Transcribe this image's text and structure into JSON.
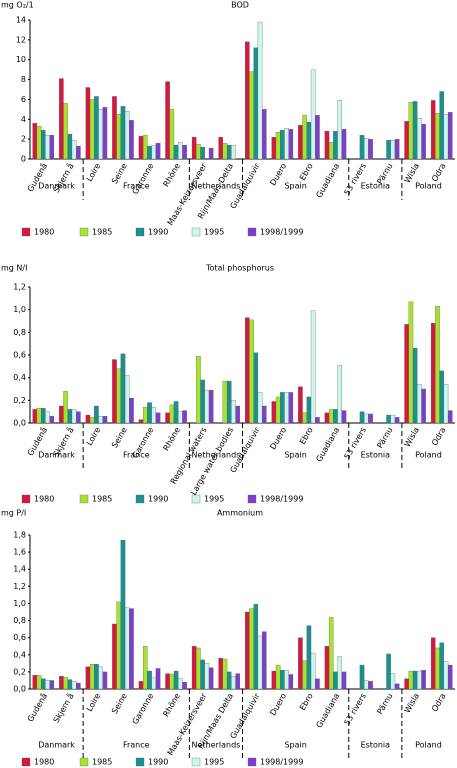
{
  "chart_data": [
    {
      "type": "bar",
      "title": "BOD",
      "ylabel": "mg O₂/1",
      "groups": [
        {
          "name": "Danmark",
          "categories": [
            "Gudenå",
            "Skjern å"
          ]
        },
        {
          "name": "France",
          "categories": [
            "Loire",
            "Seine",
            "Garonne",
            "Rhône"
          ]
        },
        {
          "name": "Netherlands",
          "categories": [
            "Maas-Keizersveer",
            "Rijn/Maas Delta"
          ]
        },
        {
          "name": "Spain",
          "categories": [
            "Guadalquivir",
            "Duero",
            "Ebro",
            "Guadiana"
          ]
        },
        {
          "name": "Estonia",
          "categories": [
            "53 rivers",
            "Pärnu"
          ]
        },
        {
          "name": "Poland",
          "categories": [
            "Wisla",
            "Odra"
          ]
        }
      ],
      "series": [
        {
          "name": "1980",
          "color": "#d6173f",
          "values": [
            3.6,
            8.1,
            7.2,
            6.3,
            2.3,
            7.8,
            2.2,
            2.2,
            11.8,
            2.2,
            3.4,
            2.8,
            null,
            null,
            3.8,
            5.9
          ]
        },
        {
          "name": "1985",
          "color": "#a6e22e",
          "values": [
            3.3,
            5.6,
            6.0,
            4.5,
            2.4,
            5.0,
            1.5,
            1.6,
            8.8,
            2.7,
            4.4,
            1.7,
            null,
            null,
            5.7,
            4.6
          ]
        },
        {
          "name": "1990",
          "color": "#1a9090",
          "values": [
            2.9,
            2.5,
            6.3,
            5.3,
            1.3,
            1.4,
            1.2,
            1.4,
            11.2,
            2.9,
            3.7,
            2.8,
            2.4,
            1.9,
            5.8,
            6.8
          ]
        },
        {
          "name": "1995",
          "color": "#ccf5ec",
          "values": [
            2.4,
            1.9,
            5.0,
            4.8,
            1.4,
            1.7,
            null,
            1.4,
            13.8,
            3.1,
            9.0,
            5.9,
            2.1,
            1.9,
            4.1,
            4.5
          ]
        },
        {
          "name": "1998/1999",
          "color": "#7d3fc8",
          "values": [
            2.4,
            1.3,
            5.2,
            3.9,
            1.6,
            1.4,
            1.1,
            null,
            5.0,
            3.0,
            4.4,
            3.0,
            2.0,
            2.0,
            3.5,
            4.7
          ]
        }
      ],
      "ylim": [
        0,
        14
      ],
      "yticks": [
        0,
        2,
        4,
        6,
        8,
        10,
        12,
        14
      ]
    },
    {
      "type": "bar",
      "title": "Total phosphorus",
      "ylabel": "mg N/I",
      "groups": [
        {
          "name": "Danmark",
          "categories": [
            "Gudenå",
            "Skjern å"
          ]
        },
        {
          "name": "France",
          "categories": [
            "Loire",
            "Seine",
            "Garonne",
            "Rhône"
          ]
        },
        {
          "name": "Netherlands",
          "categories": [
            "Regional waters",
            "Large water bodies"
          ]
        },
        {
          "name": "Spain",
          "categories": [
            "Guadalquivir",
            "Duero",
            "Ebro",
            "Guadiana"
          ]
        },
        {
          "name": "Estonia",
          "categories": [
            "53 rivers",
            "Pärnu"
          ]
        },
        {
          "name": "Poland",
          "categories": [
            "Wisla",
            "Odra"
          ]
        }
      ],
      "series": [
        {
          "name": "1980",
          "color": "#d6173f",
          "values": [
            0.12,
            0.15,
            0.07,
            0.56,
            0.03,
            0.09,
            null,
            null,
            0.93,
            0.19,
            0.32,
            0.09,
            null,
            null,
            0.87,
            0.88
          ]
        },
        {
          "name": "1985",
          "color": "#a6e22e",
          "values": [
            0.13,
            0.28,
            0.05,
            0.48,
            0.14,
            0.16,
            0.59,
            0.37,
            0.91,
            0.23,
            0.09,
            0.12,
            null,
            null,
            1.07,
            1.03
          ]
        },
        {
          "name": "1990",
          "color": "#1a9090",
          "values": [
            0.13,
            0.12,
            0.15,
            0.61,
            0.18,
            0.19,
            0.38,
            0.37,
            0.62,
            0.27,
            0.23,
            0.12,
            0.1,
            0.07,
            0.66,
            0.46
          ]
        },
        {
          "name": "1995",
          "color": "#ccf5ec",
          "values": [
            0.1,
            0.12,
            0.06,
            0.42,
            0.14,
            0.1,
            0.29,
            0.2,
            0.27,
            0.27,
            0.99,
            0.51,
            0.08,
            0.07,
            0.34,
            0.34
          ]
        },
        {
          "name": "1998/1999",
          "color": "#7d3fc8",
          "values": [
            0.06,
            0.1,
            0.06,
            0.22,
            0.09,
            0.11,
            0.29,
            0.15,
            0.15,
            0.27,
            0.05,
            0.11,
            0.08,
            0.05,
            0.3,
            0.11
          ]
        }
      ],
      "ylim": [
        0,
        1.2
      ],
      "yticks": [
        {
          "value": 0,
          "label": "0,0"
        },
        {
          "value": 0.2,
          "label": "0,2"
        },
        {
          "value": 0.4,
          "label": "0,4"
        },
        {
          "value": 0.6,
          "label": "0,6"
        },
        {
          "value": 0.8,
          "label": "0,8"
        },
        {
          "value": 1.0,
          "label": "1,0"
        },
        {
          "value": 1.2,
          "label": "1,2"
        }
      ]
    },
    {
      "type": "bar",
      "title": "Ammonium",
      "ylabel": "mg P/I",
      "groups": [
        {
          "name": "Danmark",
          "categories": [
            "Gudenå",
            "Skjern å"
          ]
        },
        {
          "name": "France",
          "categories": [
            "Loire",
            "Seine",
            "Garonne",
            "Rhône"
          ]
        },
        {
          "name": "Netherlands",
          "categories": [
            "Maas-Keizersveer",
            "Rijn/Maas Delta"
          ]
        },
        {
          "name": "Spain",
          "categories": [
            "Guadalquivir",
            "Duero",
            "Ebro",
            "Guadiana"
          ]
        },
        {
          "name": "Estonia",
          "categories": [
            "53 rivers",
            "Pärnu"
          ]
        },
        {
          "name": "Poland",
          "categories": [
            "Wisla",
            "Odra"
          ]
        }
      ],
      "series": [
        {
          "name": "1980",
          "color": "#d6173f",
          "values": [
            0.16,
            0.15,
            0.26,
            0.76,
            0.09,
            0.18,
            0.5,
            0.36,
            0.9,
            0.21,
            0.6,
            0.5,
            null,
            null,
            0.12,
            0.6
          ]
        },
        {
          "name": "1985",
          "color": "#a6e22e",
          "values": [
            0.16,
            0.14,
            0.29,
            1.02,
            0.5,
            0.17,
            0.48,
            0.35,
            0.94,
            0.28,
            0.33,
            0.84,
            null,
            null,
            0.21,
            0.48
          ]
        },
        {
          "name": "1990",
          "color": "#1a9090",
          "values": [
            0.12,
            0.11,
            0.29,
            1.74,
            0.21,
            0.21,
            0.34,
            0.2,
            0.99,
            0.22,
            0.74,
            0.2,
            0.28,
            0.41,
            0.21,
            0.54
          ]
        },
        {
          "name": "1995",
          "color": "#ccf5ec",
          "values": [
            0.1,
            0.09,
            0.26,
            0.95,
            0.13,
            0.12,
            0.3,
            0.15,
            0.62,
            0.22,
            0.42,
            0.38,
            0.1,
            0.18,
            0.21,
            0.32
          ]
        },
        {
          "name": "1998/1999",
          "color": "#7d3fc8",
          "values": [
            0.1,
            0.07,
            0.2,
            0.94,
            0.24,
            0.08,
            0.25,
            0.18,
            0.67,
            0.17,
            0.12,
            0.2,
            0.09,
            0.06,
            0.22,
            0.28
          ]
        }
      ],
      "ylim": [
        0,
        1.8
      ],
      "yticks": [
        {
          "value": 0,
          "label": "0,0"
        },
        {
          "value": 0.2,
          "label": "0,2"
        },
        {
          "value": 0.4,
          "label": "0,4"
        },
        {
          "value": 0.6,
          "label": "0,6"
        },
        {
          "value": 0.8,
          "label": "0,8"
        },
        {
          "value": 1.0,
          "label": "1,0"
        },
        {
          "value": 1.2,
          "label": "1,2"
        },
        {
          "value": 1.4,
          "label": "1,4"
        },
        {
          "value": 1.6,
          "label": "1,6"
        },
        {
          "value": 1.8,
          "label": "1,8"
        }
      ]
    }
  ]
}
